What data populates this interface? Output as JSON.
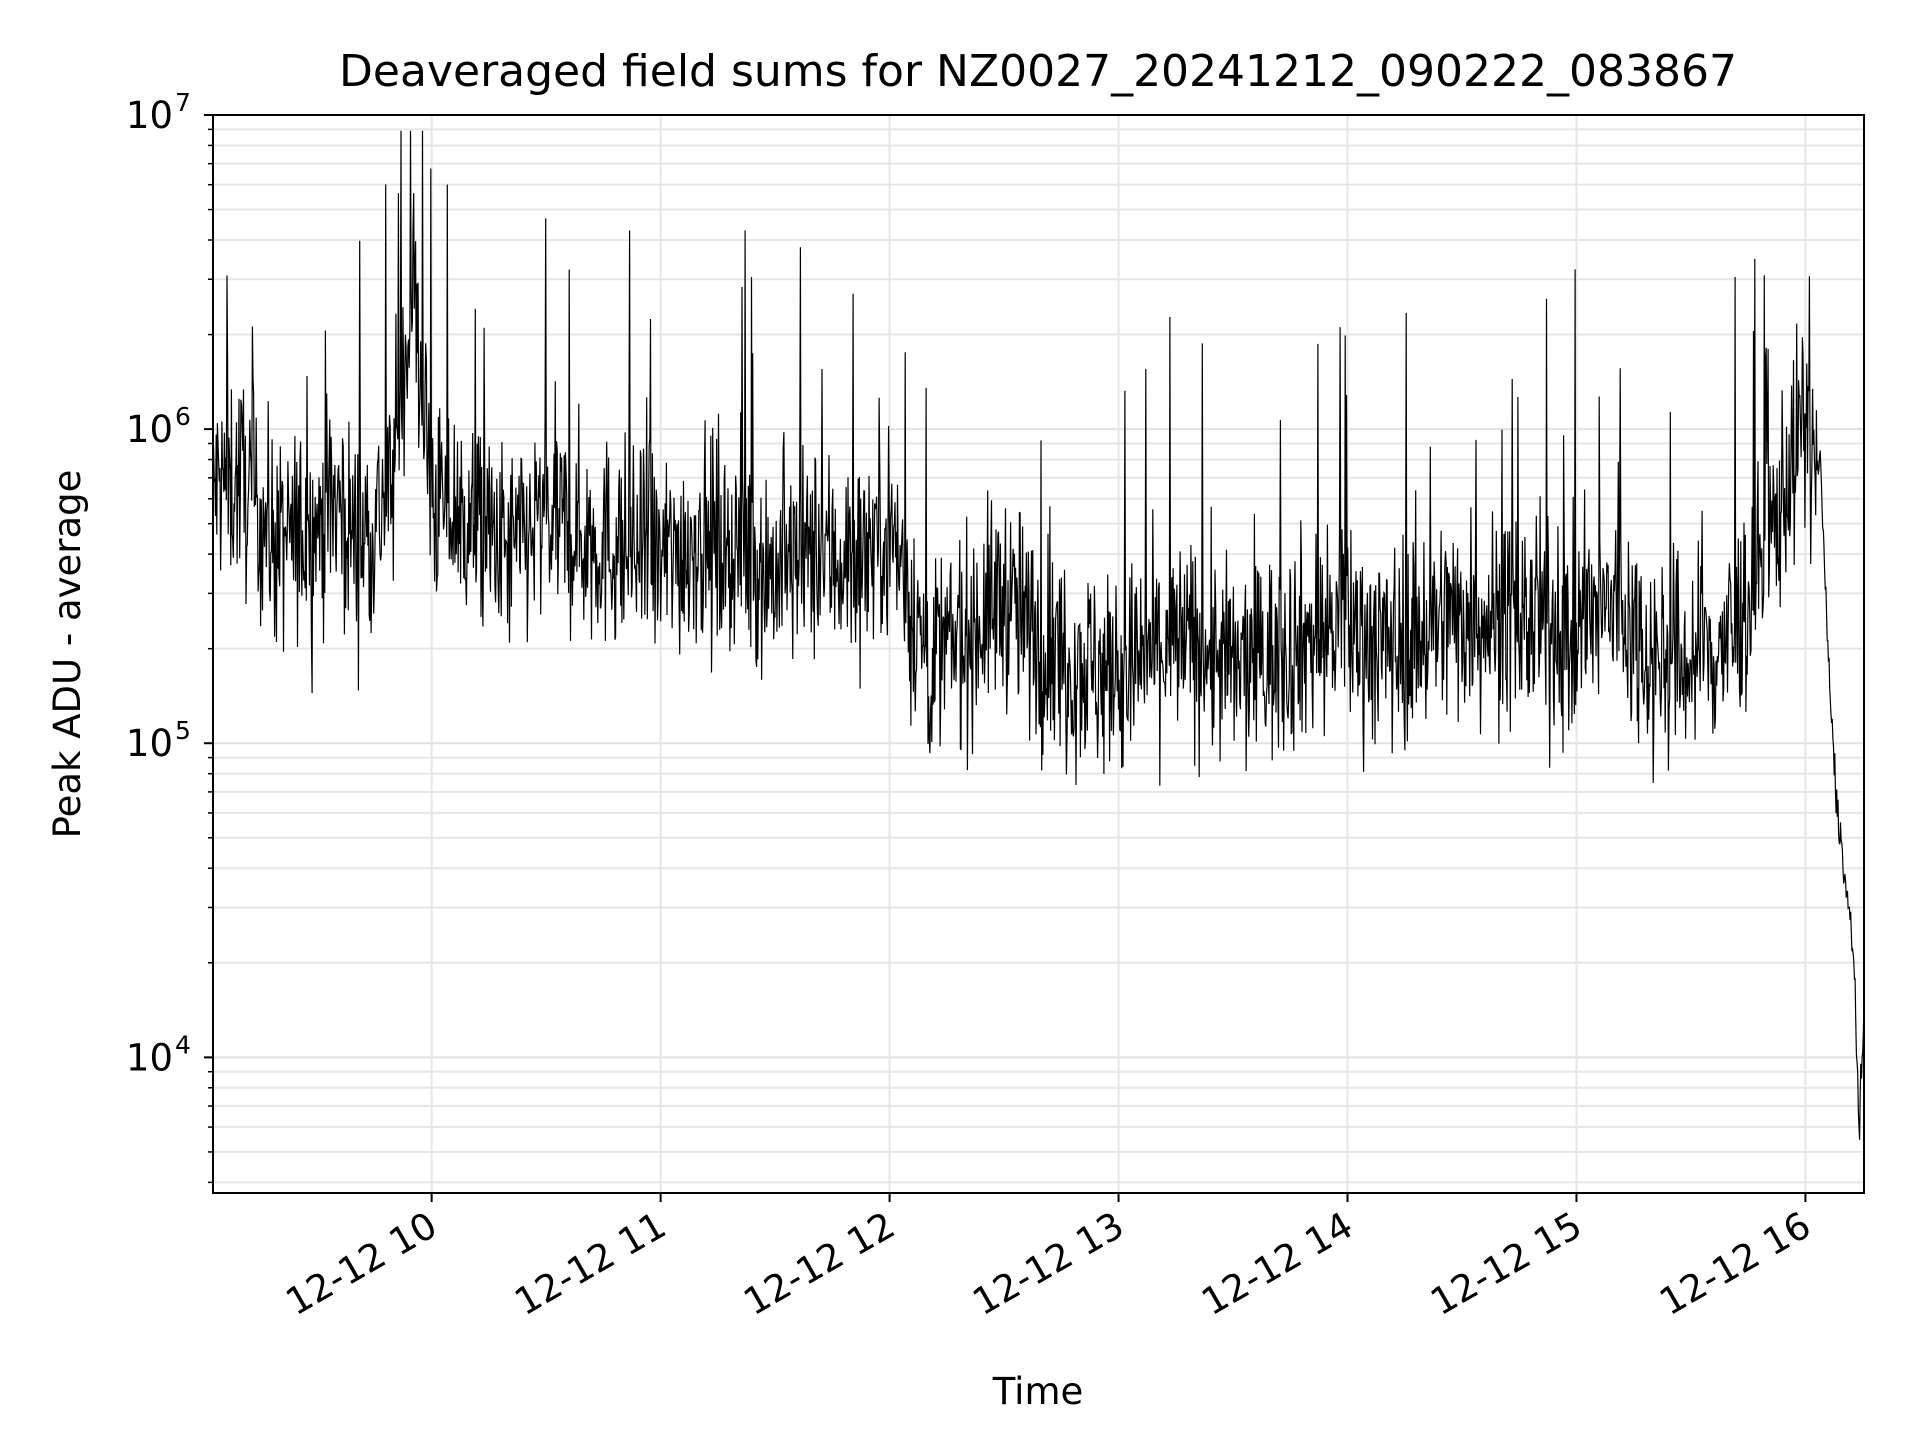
{
  "chart_data": {
    "type": "line",
    "title": "Deaveraged field sums for NZ0027_20241212_090222_083867",
    "xlabel": "Time",
    "ylabel": "Peak ADU - average",
    "y_scale": "log",
    "ylim": [
      3700,
      10000000
    ],
    "xlim": [
      "2024-12-12 09:02:42",
      "2024-12-12 16:15:21"
    ],
    "x_ticks": [
      "12-12 10",
      "12-12 11",
      "12-12 12",
      "12-12 13",
      "12-12 14",
      "12-12 15",
      "12-12 16"
    ],
    "y_ticks": [
      {
        "base": "10",
        "exp": "4"
      },
      {
        "base": "10",
        "exp": "5"
      },
      {
        "base": "10",
        "exp": "6"
      },
      {
        "base": "10",
        "exp": "7"
      }
    ],
    "grid": true,
    "line_color": "#000000",
    "series": [
      {
        "x": [
          "2024-12-12 09:02:42",
          "2024-12-12 09:10:00",
          "2024-12-12 09:20:00",
          "2024-12-12 09:30:00",
          "2024-12-12 09:35:00",
          "2024-12-12 09:40:00",
          "2024-12-12 09:45:00",
          "2024-12-12 09:50:00",
          "2024-12-12 09:55:00",
          "2024-12-12 10:00:00",
          "2024-12-12 10:05:00",
          "2024-12-12 10:10:00",
          "2024-12-12 10:20:00",
          "2024-12-12 10:30:00",
          "2024-12-12 10:40:00",
          "2024-12-12 10:50:00",
          "2024-12-12 11:00:00",
          "2024-12-12 11:10:00",
          "2024-12-12 11:20:00",
          "2024-12-12 11:30:00",
          "2024-12-12 11:40:00",
          "2024-12-12 11:50:00",
          "2024-12-12 12:00:00",
          "2024-12-12 12:10:00",
          "2024-12-12 12:20:00",
          "2024-12-12 12:30:00",
          "2024-12-12 12:40:00",
          "2024-12-12 12:50:00",
          "2024-12-12 13:00:00",
          "2024-12-12 13:10:00",
          "2024-12-12 13:20:00",
          "2024-12-12 13:30:00",
          "2024-12-12 13:40:00",
          "2024-12-12 13:50:00",
          "2024-12-12 14:00:00",
          "2024-12-12 14:10:00",
          "2024-12-12 14:20:00",
          "2024-12-12 14:30:00",
          "2024-12-12 14:40:00",
          "2024-12-12 14:50:00",
          "2024-12-12 15:00:00",
          "2024-12-12 15:10:00",
          "2024-12-12 15:20:00",
          "2024-12-12 15:30:00",
          "2024-12-12 15:40:00",
          "2024-12-12 15:50:00",
          "2024-12-12 15:55:00",
          "2024-12-12 16:00:00",
          "2024-12-12 16:02:00",
          "2024-12-12 16:04:00",
          "2024-12-12 16:06:00",
          "2024-12-12 16:08:00",
          "2024-12-12 16:10:00",
          "2024-12-12 16:12:00",
          "2024-12-12 16:13:00",
          "2024-12-12 16:14:00",
          "2024-12-12 16:15:21"
        ],
        "values": [
          650000,
          700000,
          420000,
          500000,
          600000,
          450000,
          500000,
          700000,
          3000000,
          600000,
          550000,
          500000,
          400000,
          520000,
          450000,
          420000,
          380000,
          450000,
          420000,
          350000,
          400000,
          380000,
          500000,
          180000,
          220000,
          300000,
          200000,
          180000,
          160000,
          200000,
          210000,
          170000,
          190000,
          220000,
          240000,
          200000,
          230000,
          260000,
          250000,
          240000,
          220000,
          280000,
          190000,
          180000,
          210000,
          400000,
          700000,
          1100000,
          800000,
          750000,
          180000,
          70000,
          40000,
          25000,
          17000,
          6000,
          13000
        ]
      }
    ]
  }
}
